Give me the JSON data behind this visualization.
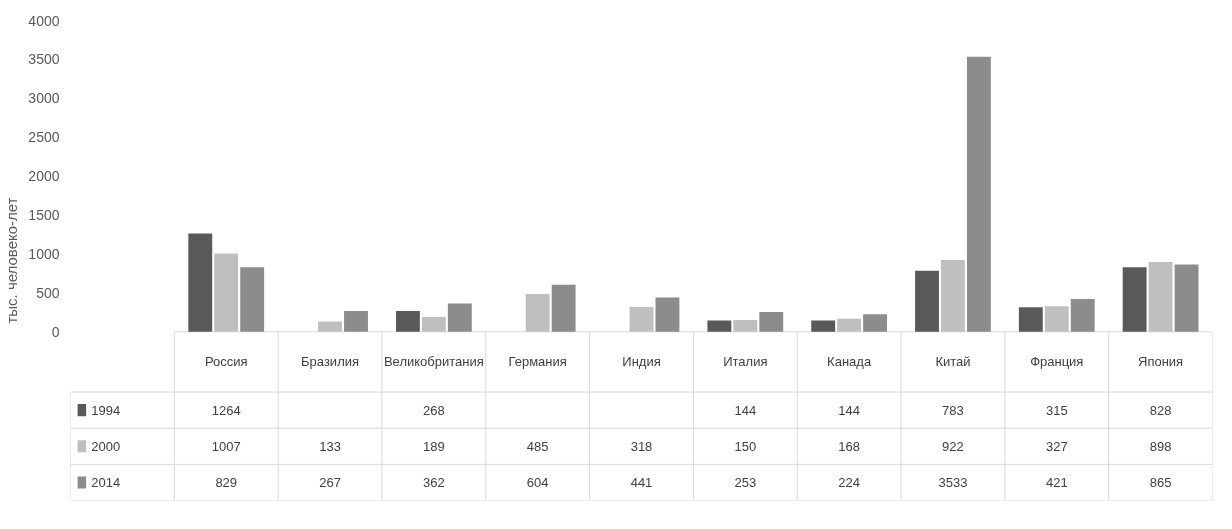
{
  "chart_data": {
    "type": "bar",
    "ylabel": "тыс. человеко-лет",
    "categories": [
      "Россия",
      "Бразилия",
      "Великобритания",
      "Германия",
      "Индия",
      "Италия",
      "Канада",
      "Китай",
      "Франция",
      "Япония"
    ],
    "series": [
      {
        "name": "1994",
        "color": "#595959",
        "values": [
          1264,
          null,
          268,
          null,
          null,
          144,
          144,
          783,
          315,
          828
        ]
      },
      {
        "name": "2000",
        "color": "#bfbfbf",
        "values": [
          1007,
          133,
          189,
          485,
          318,
          150,
          168,
          922,
          327,
          898
        ]
      },
      {
        "name": "2014",
        "color": "#8c8c8c",
        "values": [
          829,
          267,
          362,
          604,
          441,
          253,
          224,
          3533,
          421,
          865
        ]
      }
    ],
    "ylim": [
      0,
      4000
    ],
    "yticks": [
      0,
      500,
      1000,
      1500,
      2000,
      2500,
      3000,
      3500,
      4000
    ],
    "data_labels": true,
    "legend": "bottom"
  }
}
